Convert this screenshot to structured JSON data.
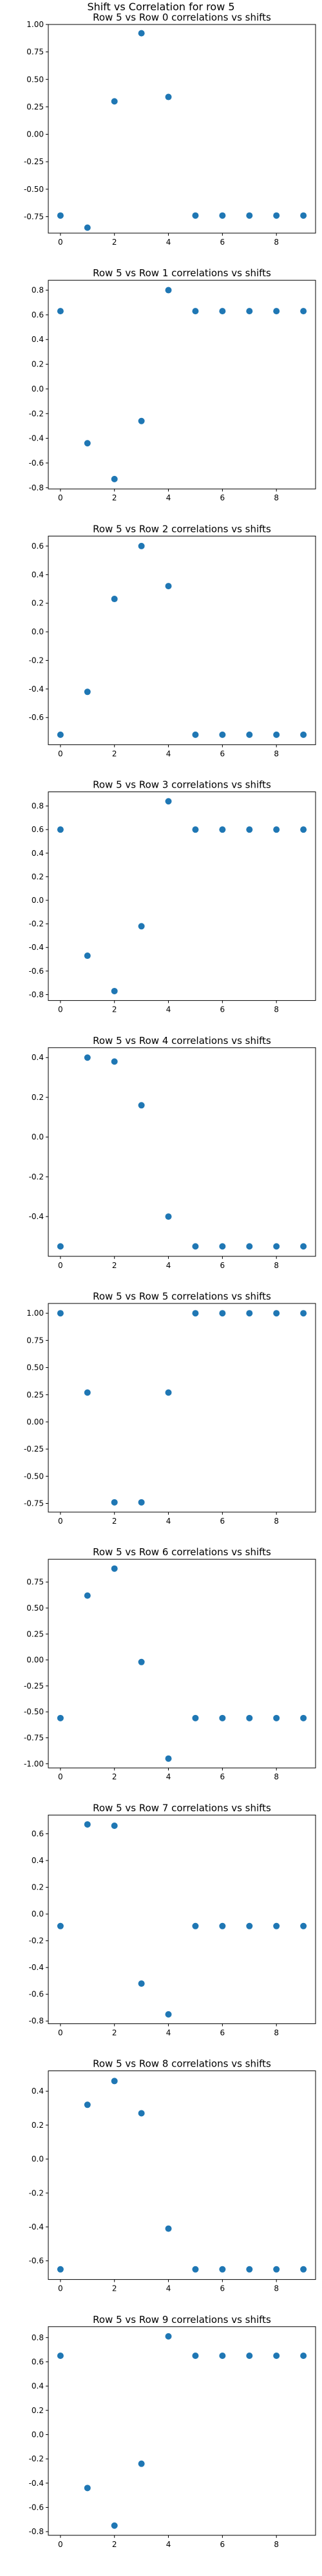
{
  "figure_title": "Shift vs Correlation for row 5",
  "colors": {
    "marker": "#1f77b4",
    "axes": "#000000",
    "background": "#ffffff"
  },
  "chart_data": [
    {
      "type": "scatter",
      "title": "Row 5 vs Row 0 correlations vs shifts",
      "x": [
        0,
        1,
        2,
        3,
        4,
        5,
        6,
        7,
        8,
        9
      ],
      "y": [
        -0.74,
        -0.85,
        0.3,
        0.92,
        0.34,
        -0.74,
        -0.74,
        -0.74,
        -0.74,
        -0.74
      ],
      "ylim": [
        -0.9,
        1.0
      ],
      "xlim": [
        -0.45,
        9.45
      ],
      "yticks": [
        -0.75,
        -0.5,
        -0.25,
        0.0,
        0.25,
        0.5,
        0.75,
        1.0
      ],
      "ytick_labels": [
        "-0.75",
        "-0.50",
        "-0.25",
        "0.00",
        "0.25",
        "0.50",
        "0.75",
        "1.00"
      ],
      "xticks": [
        0,
        2,
        4,
        6,
        8
      ],
      "xtick_labels": [
        "0",
        "2",
        "4",
        "6",
        "8"
      ]
    },
    {
      "type": "scatter",
      "title": "Row 5 vs Row 1 correlations vs shifts",
      "x": [
        0,
        1,
        2,
        3,
        4,
        5,
        6,
        7,
        8,
        9
      ],
      "y": [
        0.63,
        -0.44,
        -0.73,
        -0.26,
        0.8,
        0.63,
        0.63,
        0.63,
        0.63,
        0.63
      ],
      "ylim": [
        -0.81,
        0.88
      ],
      "xlim": [
        -0.45,
        9.45
      ],
      "yticks": [
        -0.8,
        -0.6,
        -0.4,
        -0.2,
        0.0,
        0.2,
        0.4,
        0.6,
        0.8
      ],
      "ytick_labels": [
        "-0.8",
        "-0.6",
        "-0.4",
        "-0.2",
        "0.0",
        "0.2",
        "0.4",
        "0.6",
        "0.8"
      ],
      "xticks": [
        0,
        2,
        4,
        6,
        8
      ],
      "xtick_labels": [
        "0",
        "2",
        "4",
        "6",
        "8"
      ]
    },
    {
      "type": "scatter",
      "title": "Row 5 vs Row 2 correlations vs shifts",
      "x": [
        0,
        1,
        2,
        3,
        4,
        5,
        6,
        7,
        8,
        9
      ],
      "y": [
        -0.72,
        -0.42,
        0.23,
        0.6,
        0.32,
        -0.72,
        -0.72,
        -0.72,
        -0.72,
        -0.72
      ],
      "ylim": [
        -0.79,
        0.67
      ],
      "xlim": [
        -0.45,
        9.45
      ],
      "yticks": [
        -0.6,
        -0.4,
        -0.2,
        0.0,
        0.2,
        0.4,
        0.6
      ],
      "ytick_labels": [
        "-0.6",
        "-0.4",
        "-0.2",
        "0.0",
        "0.2",
        "0.4",
        "0.6"
      ],
      "xticks": [
        0,
        2,
        4,
        6,
        8
      ],
      "xtick_labels": [
        "0",
        "2",
        "4",
        "6",
        "8"
      ]
    },
    {
      "type": "scatter",
      "title": "Row 5 vs Row 3 correlations vs shifts",
      "x": [
        0,
        1,
        2,
        3,
        4,
        5,
        6,
        7,
        8,
        9
      ],
      "y": [
        0.6,
        -0.47,
        -0.77,
        -0.22,
        0.84,
        0.6,
        0.6,
        0.6,
        0.6,
        0.6
      ],
      "ylim": [
        -0.85,
        0.92
      ],
      "xlim": [
        -0.45,
        9.45
      ],
      "yticks": [
        -0.8,
        -0.6,
        -0.4,
        -0.2,
        0.0,
        0.2,
        0.4,
        0.6,
        0.8
      ],
      "ytick_labels": [
        "-0.8",
        "-0.6",
        "-0.4",
        "-0.2",
        "0.0",
        "0.2",
        "0.4",
        "0.6",
        "0.8"
      ],
      "xticks": [
        0,
        2,
        4,
        6,
        8
      ],
      "xtick_labels": [
        "0",
        "2",
        "4",
        "6",
        "8"
      ]
    },
    {
      "type": "scatter",
      "title": "Row 5 vs Row 4 correlations vs shifts",
      "x": [
        0,
        1,
        2,
        3,
        4,
        5,
        6,
        7,
        8,
        9
      ],
      "y": [
        -0.55,
        0.4,
        0.38,
        0.16,
        -0.4,
        -0.55,
        -0.55,
        -0.55,
        -0.55,
        -0.55
      ],
      "ylim": [
        -0.6,
        0.45
      ],
      "xlim": [
        -0.45,
        9.45
      ],
      "yticks": [
        -0.4,
        -0.2,
        0.0,
        0.2,
        0.4
      ],
      "ytick_labels": [
        "-0.4",
        "-0.2",
        "0.0",
        "0.2",
        "0.4"
      ],
      "xticks": [
        0,
        2,
        4,
        6,
        8
      ],
      "xtick_labels": [
        "0",
        "2",
        "4",
        "6",
        "8"
      ]
    },
    {
      "type": "scatter",
      "title": "Row 5 vs Row 5 correlations vs shifts",
      "x": [
        0,
        1,
        2,
        3,
        4,
        5,
        6,
        7,
        8,
        9
      ],
      "y": [
        1.0,
        0.27,
        -0.74,
        -0.74,
        0.27,
        1.0,
        1.0,
        1.0,
        1.0,
        1.0
      ],
      "ylim": [
        -0.83,
        1.09
      ],
      "xlim": [
        -0.45,
        9.45
      ],
      "yticks": [
        -0.75,
        -0.5,
        -0.25,
        0.0,
        0.25,
        0.5,
        0.75,
        1.0
      ],
      "ytick_labels": [
        "-0.75",
        "-0.50",
        "-0.25",
        "0.00",
        "0.25",
        "0.50",
        "0.75",
        "1.00"
      ],
      "xticks": [
        0,
        2,
        4,
        6,
        8
      ],
      "xtick_labels": [
        "0",
        "2",
        "4",
        "6",
        "8"
      ]
    },
    {
      "type": "scatter",
      "title": "Row 5 vs Row 6 correlations vs shifts",
      "x": [
        0,
        1,
        2,
        3,
        4,
        5,
        6,
        7,
        8,
        9
      ],
      "y": [
        -0.56,
        0.62,
        0.88,
        -0.02,
        -0.95,
        -0.56,
        -0.56,
        -0.56,
        -0.56,
        -0.56
      ],
      "ylim": [
        -1.04,
        0.97
      ],
      "xlim": [
        -0.45,
        9.45
      ],
      "yticks": [
        -1.0,
        -0.75,
        -0.5,
        -0.25,
        0.0,
        0.25,
        0.5,
        0.75
      ],
      "ytick_labels": [
        "-1.00",
        "-0.75",
        "-0.50",
        "-0.25",
        "0.00",
        "0.25",
        "0.50",
        "0.75"
      ],
      "xticks": [
        0,
        2,
        4,
        6,
        8
      ],
      "xtick_labels": [
        "0",
        "2",
        "4",
        "6",
        "8"
      ]
    },
    {
      "type": "scatter",
      "title": "Row 5 vs Row 7 correlations vs shifts",
      "x": [
        0,
        1,
        2,
        3,
        4,
        5,
        6,
        7,
        8,
        9
      ],
      "y": [
        -0.09,
        0.67,
        0.66,
        -0.52,
        -0.75,
        -0.09,
        -0.09,
        -0.09,
        -0.09,
        -0.09
      ],
      "ylim": [
        -0.82,
        0.74
      ],
      "xlim": [
        -0.45,
        9.45
      ],
      "yticks": [
        -0.8,
        -0.6,
        -0.4,
        -0.2,
        0.0,
        0.2,
        0.4,
        0.6
      ],
      "ytick_labels": [
        "-0.8",
        "-0.6",
        "-0.4",
        "-0.2",
        "0.0",
        "0.2",
        "0.4",
        "0.6"
      ],
      "xticks": [
        0,
        2,
        4,
        6,
        8
      ],
      "xtick_labels": [
        "0",
        "2",
        "4",
        "6",
        "8"
      ]
    },
    {
      "type": "scatter",
      "title": "Row 5 vs Row 8 correlations vs shifts",
      "x": [
        0,
        1,
        2,
        3,
        4,
        5,
        6,
        7,
        8,
        9
      ],
      "y": [
        -0.65,
        0.32,
        0.46,
        0.27,
        -0.41,
        -0.65,
        -0.65,
        -0.65,
        -0.65,
        -0.65
      ],
      "ylim": [
        -0.71,
        0.52
      ],
      "xlim": [
        -0.45,
        9.45
      ],
      "yticks": [
        -0.6,
        -0.4,
        -0.2,
        0.0,
        0.2,
        0.4
      ],
      "ytick_labels": [
        "-0.6",
        "-0.4",
        "-0.2",
        "0.0",
        "0.2",
        "0.4"
      ],
      "xticks": [
        0,
        2,
        4,
        6,
        8
      ],
      "xtick_labels": [
        "0",
        "2",
        "4",
        "6",
        "8"
      ]
    },
    {
      "type": "scatter",
      "title": "Row 5 vs Row 9 correlations vs shifts",
      "x": [
        0,
        1,
        2,
        3,
        4,
        5,
        6,
        7,
        8,
        9
      ],
      "y": [
        0.65,
        -0.44,
        -0.75,
        -0.24,
        0.81,
        0.65,
        0.65,
        0.65,
        0.65,
        0.65
      ],
      "ylim": [
        -0.83,
        0.89
      ],
      "xlim": [
        -0.45,
        9.45
      ],
      "yticks": [
        -0.8,
        -0.6,
        -0.4,
        -0.2,
        0.0,
        0.2,
        0.4,
        0.6,
        0.8
      ],
      "ytick_labels": [
        "-0.8",
        "-0.6",
        "-0.4",
        "-0.2",
        "0.0",
        "0.2",
        "0.4",
        "0.6",
        "0.8"
      ],
      "xticks": [
        0,
        2,
        4,
        6,
        8
      ],
      "xtick_labels": [
        "0",
        "2",
        "4",
        "6",
        "8"
      ]
    }
  ]
}
